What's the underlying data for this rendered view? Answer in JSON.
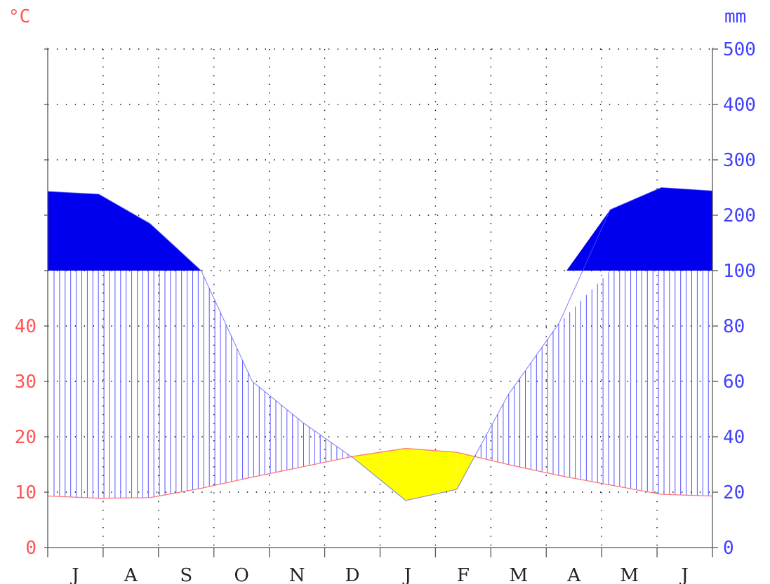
{
  "chart_data": {
    "type": "climate-diagram",
    "left_unit": "°C",
    "right_unit": "mm",
    "months": [
      "J",
      "A",
      "S",
      "O",
      "N",
      "D",
      "J",
      "F",
      "M",
      "A",
      "M",
      "J"
    ],
    "temperature_ticks": [
      "0",
      "10",
      "20",
      "30",
      "40"
    ],
    "precip_ticks": [
      "0",
      "20",
      "40",
      "60",
      "80",
      "100",
      "200",
      "300",
      "400",
      "500"
    ],
    "temperature_c": [
      9.3,
      8.9,
      9.0,
      10.7,
      12.7,
      14.6,
      16.5,
      17.9,
      17.2,
      15.0,
      13.0,
      11.3,
      9.6,
      9.3
    ],
    "precipitation_mm": [
      243,
      238,
      185,
      100,
      60,
      45,
      32,
      17,
      21,
      55,
      81,
      210,
      250,
      244
    ],
    "colors": {
      "temperature": "#ff7777",
      "precipitation": "#5555ff",
      "humid": "#0000ff",
      "perhumid": "#0000ee",
      "arid": "#ffff00",
      "left_axis_text": "#ff5555",
      "right_axis_text": "#4040ff"
    },
    "grid": "dotted",
    "precip_scale_break_mm": 100
  }
}
